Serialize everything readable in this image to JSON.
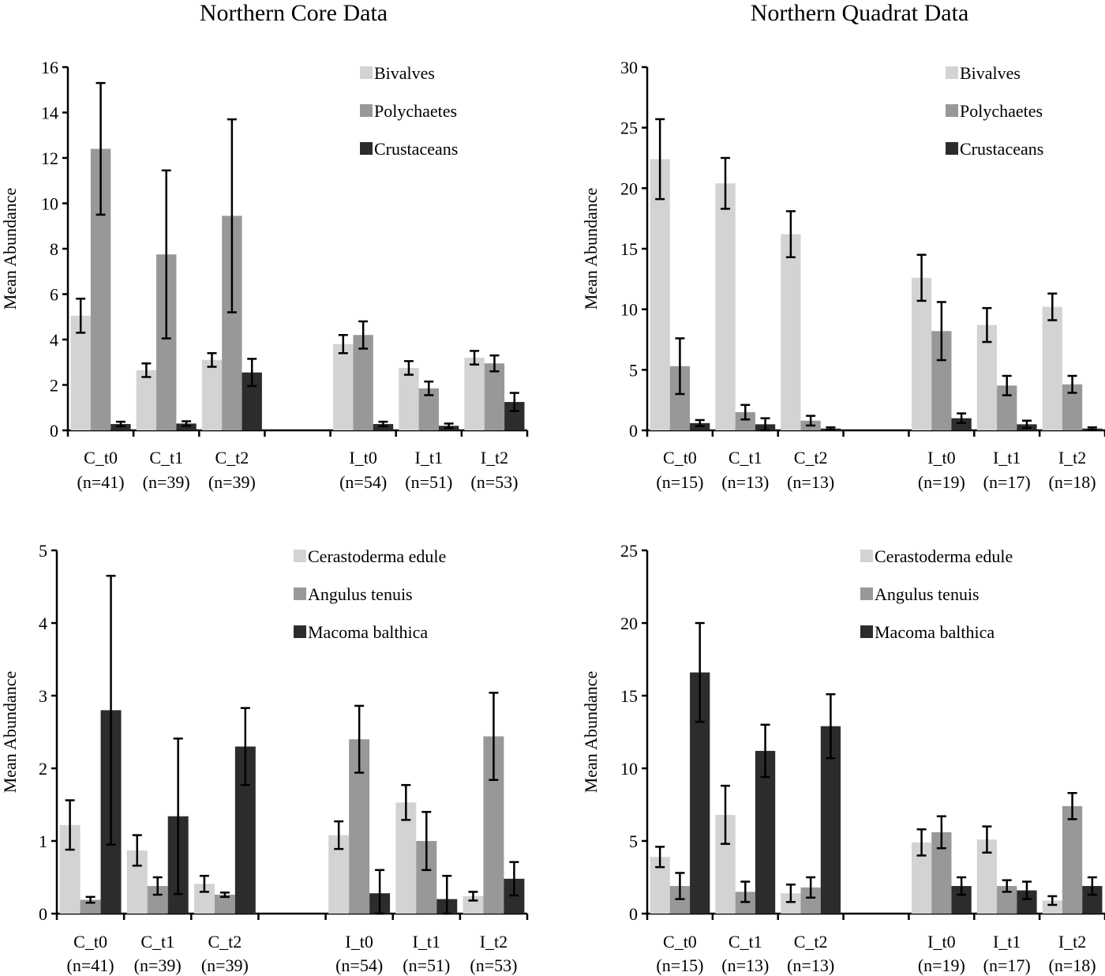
{
  "colors": {
    "light": "#d3d3d3",
    "mid": "#989898",
    "dark": "#2c2c2c",
    "axis": "#000000"
  },
  "chart_data": [
    {
      "type": "bar",
      "title": "Northern Core Data",
      "ylabel": "Mean Abundance",
      "ylim": [
        0,
        16
      ],
      "yticks": [
        0,
        2,
        4,
        6,
        8,
        10,
        12,
        14,
        16
      ],
      "legend_position": "top-right",
      "categories": [
        {
          "label": "C_t0",
          "n": "(n=41)"
        },
        {
          "label": "C_t1",
          "n": "(n=39)"
        },
        {
          "label": "C_t2",
          "n": "(n=39)"
        },
        {
          "label": "",
          "n": ""
        },
        {
          "label": "I_t0",
          "n": "(n=54)"
        },
        {
          "label": "I_t1",
          "n": "(n=51)"
        },
        {
          "label": "I_t2",
          "n": "(n=53)"
        }
      ],
      "series": [
        {
          "name": "Bivalves",
          "color": "#d3d3d3",
          "values": [
            5.05,
            2.65,
            3.1,
            null,
            3.8,
            2.75,
            3.2
          ],
          "errors": [
            0.75,
            0.3,
            0.3,
            null,
            0.4,
            0.3,
            0.3
          ]
        },
        {
          "name": "Polychaetes",
          "color": "#989898",
          "values": [
            12.4,
            7.75,
            9.45,
            null,
            4.2,
            1.85,
            2.95
          ],
          "errors": [
            2.9,
            3.7,
            4.25,
            null,
            0.6,
            0.3,
            0.35
          ]
        },
        {
          "name": "Crustaceans",
          "color": "#2c2c2c",
          "values": [
            0.28,
            0.3,
            2.55,
            null,
            0.28,
            0.2,
            1.25
          ],
          "errors": [
            0.1,
            0.1,
            0.6,
            null,
            0.1,
            0.1,
            0.4
          ]
        }
      ]
    },
    {
      "type": "bar",
      "title": "Northern Quadrat Data",
      "ylabel": "Mean Abundance",
      "ylim": [
        0,
        30
      ],
      "yticks": [
        0,
        5,
        10,
        15,
        20,
        25,
        30
      ],
      "legend_position": "top-right",
      "categories": [
        {
          "label": "C_t0",
          "n": "(n=15)"
        },
        {
          "label": "C_t1",
          "n": "(n=13)"
        },
        {
          "label": "C_t2",
          "n": "(n=13)"
        },
        {
          "label": "",
          "n": ""
        },
        {
          "label": "I_t0",
          "n": "(n=19)"
        },
        {
          "label": "I_t1",
          "n": "(n=17)"
        },
        {
          "label": "I_t2",
          "n": "(n=18)"
        }
      ],
      "series": [
        {
          "name": "Bivalves",
          "color": "#d3d3d3",
          "values": [
            22.4,
            20.4,
            16.2,
            null,
            12.6,
            8.7,
            10.2
          ],
          "errors": [
            3.3,
            2.1,
            1.9,
            null,
            1.9,
            1.4,
            1.1
          ]
        },
        {
          "name": "Polychaetes",
          "color": "#989898",
          "values": [
            5.3,
            1.5,
            0.8,
            null,
            8.2,
            3.7,
            3.8
          ],
          "errors": [
            2.3,
            0.6,
            0.4,
            null,
            2.4,
            0.8,
            0.7
          ]
        },
        {
          "name": "Crustaceans",
          "color": "#2c2c2c",
          "values": [
            0.6,
            0.5,
            0.15,
            null,
            1.0,
            0.5,
            0.15
          ],
          "errors": [
            0.25,
            0.5,
            0.1,
            null,
            0.4,
            0.3,
            0.1
          ]
        }
      ]
    },
    {
      "type": "bar",
      "title": "",
      "ylabel": "Mean Abundance",
      "ylim": [
        0,
        5
      ],
      "yticks": [
        0,
        1,
        2,
        3,
        4,
        5
      ],
      "legend_position": "top-right",
      "categories": [
        {
          "label": "C_t0",
          "n": "(n=41)"
        },
        {
          "label": "C_t1",
          "n": "(n=39)"
        },
        {
          "label": "C_t2",
          "n": "(n=39)"
        },
        {
          "label": "",
          "n": ""
        },
        {
          "label": "I_t0",
          "n": "(n=54)"
        },
        {
          "label": "I_t1",
          "n": "(n=51)"
        },
        {
          "label": "I_t2",
          "n": "(n=53)"
        }
      ],
      "series": [
        {
          "name": "Cerastoderma edule",
          "color": "#d3d3d3",
          "values": [
            1.22,
            0.87,
            0.41,
            null,
            1.08,
            1.53,
            0.24
          ],
          "errors": [
            0.34,
            0.21,
            0.11,
            null,
            0.19,
            0.24,
            0.06
          ]
        },
        {
          "name": "Angulus tenuis",
          "color": "#989898",
          "values": [
            0.19,
            0.38,
            0.26,
            null,
            2.4,
            1.0,
            2.44
          ],
          "errors": [
            0.04,
            0.12,
            0.03,
            null,
            0.46,
            0.4,
            0.6
          ]
        },
        {
          "name": "Macoma balthica",
          "color": "#2c2c2c",
          "values": [
            2.8,
            1.34,
            2.3,
            null,
            0.28,
            0.2,
            0.48
          ],
          "errors": [
            1.85,
            1.07,
            0.53,
            null,
            0.32,
            0.32,
            0.23
          ]
        }
      ]
    },
    {
      "type": "bar",
      "title": "",
      "ylabel": "Mean Abundance",
      "ylim": [
        0,
        25
      ],
      "yticks": [
        0,
        5,
        10,
        15,
        20,
        25
      ],
      "legend_position": "top-right",
      "categories": [
        {
          "label": "C_t0",
          "n": "(n=15)"
        },
        {
          "label": "C_t1",
          "n": "(n=13)"
        },
        {
          "label": "C_t2",
          "n": "(n=13)"
        },
        {
          "label": "",
          "n": ""
        },
        {
          "label": "I_t0",
          "n": "(n=19)"
        },
        {
          "label": "I_t1",
          "n": "(n=17)"
        },
        {
          "label": "I_t2",
          "n": "(n=18)"
        }
      ],
      "series": [
        {
          "name": "Cerastoderma edule",
          "color": "#d3d3d3",
          "values": [
            3.9,
            6.8,
            1.4,
            null,
            4.9,
            5.1,
            0.9
          ],
          "errors": [
            0.7,
            2.0,
            0.6,
            null,
            0.9,
            0.9,
            0.3
          ]
        },
        {
          "name": "Angulus tenuis",
          "color": "#989898",
          "values": [
            1.9,
            1.5,
            1.8,
            null,
            5.6,
            1.9,
            7.4
          ],
          "errors": [
            0.9,
            0.7,
            0.7,
            null,
            1.1,
            0.4,
            0.9
          ]
        },
        {
          "name": "Macoma balthica",
          "color": "#2c2c2c",
          "values": [
            16.6,
            11.2,
            12.9,
            null,
            1.9,
            1.6,
            1.9
          ],
          "errors": [
            3.4,
            1.8,
            2.2,
            null,
            0.6,
            0.6,
            0.6
          ]
        }
      ]
    }
  ]
}
